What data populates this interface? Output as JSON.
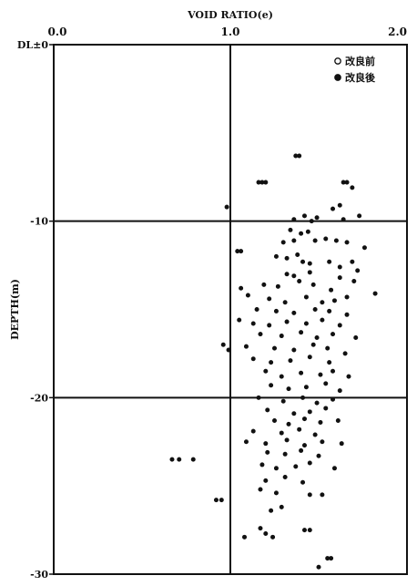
{
  "chart_data": {
    "type": "scatter",
    "title": "",
    "xlabel": "VOID RATIO(e)",
    "ylabel": "DEPTH(m)",
    "xlim": [
      0.0,
      2.0
    ],
    "ylim": [
      0,
      -30
    ],
    "x_ticks": [
      "0.0",
      "1.0",
      "2.0"
    ],
    "y_ticks": [
      "DL±0",
      "-10",
      "-20",
      "-30"
    ],
    "grid": true,
    "legend_position": "top-right",
    "legend": [
      "改良前",
      "改良後"
    ],
    "series": [
      {
        "name": "改良前",
        "marker": "open-circle",
        "points": []
      },
      {
        "name": "改良後",
        "marker": "filled-circle",
        "points": [
          [
            1.37,
            -6.3
          ],
          [
            1.39,
            -6.3
          ],
          [
            1.16,
            -7.8
          ],
          [
            1.18,
            -7.8
          ],
          [
            1.2,
            -7.8
          ],
          [
            1.64,
            -7.8
          ],
          [
            1.66,
            -7.8
          ],
          [
            1.69,
            -8.1
          ],
          [
            0.98,
            -9.2
          ],
          [
            1.62,
            -9.1
          ],
          [
            1.58,
            -9.3
          ],
          [
            1.36,
            -9.9
          ],
          [
            1.42,
            -9.7
          ],
          [
            1.46,
            -10.0
          ],
          [
            1.49,
            -9.8
          ],
          [
            1.64,
            -9.9
          ],
          [
            1.73,
            -9.7
          ],
          [
            1.34,
            -10.5
          ],
          [
            1.4,
            -10.7
          ],
          [
            1.44,
            -10.6
          ],
          [
            1.3,
            -11.2
          ],
          [
            1.36,
            -11.1
          ],
          [
            1.48,
            -11.1
          ],
          [
            1.54,
            -11.0
          ],
          [
            1.6,
            -11.1
          ],
          [
            1.66,
            -11.2
          ],
          [
            1.76,
            -11.5
          ],
          [
            1.04,
            -11.7
          ],
          [
            1.06,
            -11.7
          ],
          [
            1.26,
            -12.0
          ],
          [
            1.32,
            -12.1
          ],
          [
            1.38,
            -11.9
          ],
          [
            1.41,
            -12.3
          ],
          [
            1.45,
            -12.4
          ],
          [
            1.56,
            -12.3
          ],
          [
            1.62,
            -12.6
          ],
          [
            1.69,
            -12.3
          ],
          [
            1.72,
            -12.8
          ],
          [
            1.32,
            -13.0
          ],
          [
            1.36,
            -13.1
          ],
          [
            1.45,
            -12.9
          ],
          [
            1.62,
            -13.2
          ],
          [
            1.7,
            -13.4
          ],
          [
            1.19,
            -13.6
          ],
          [
            1.27,
            -13.7
          ],
          [
            1.39,
            -13.4
          ],
          [
            1.47,
            -13.6
          ],
          [
            1.57,
            -13.9
          ],
          [
            1.82,
            -14.1
          ],
          [
            1.06,
            -13.8
          ],
          [
            1.1,
            -14.2
          ],
          [
            1.22,
            -14.4
          ],
          [
            1.31,
            -14.6
          ],
          [
            1.43,
            -14.3
          ],
          [
            1.52,
            -14.6
          ],
          [
            1.59,
            -14.5
          ],
          [
            1.66,
            -14.3
          ],
          [
            1.15,
            -15.0
          ],
          [
            1.26,
            -15.1
          ],
          [
            1.36,
            -15.2
          ],
          [
            1.48,
            -15.0
          ],
          [
            1.56,
            -15.1
          ],
          [
            1.66,
            -15.3
          ],
          [
            1.05,
            -15.6
          ],
          [
            1.13,
            -15.8
          ],
          [
            1.22,
            -15.9
          ],
          [
            1.32,
            -15.7
          ],
          [
            1.43,
            -15.8
          ],
          [
            1.52,
            -15.6
          ],
          [
            1.62,
            -15.9
          ],
          [
            1.17,
            -16.4
          ],
          [
            1.29,
            -16.5
          ],
          [
            1.4,
            -16.3
          ],
          [
            1.49,
            -16.6
          ],
          [
            1.58,
            -16.4
          ],
          [
            1.71,
            -16.6
          ],
          [
            0.96,
            -17.0
          ],
          [
            0.99,
            -17.3
          ],
          [
            1.09,
            -17.1
          ],
          [
            1.25,
            -17.2
          ],
          [
            1.36,
            -17.3
          ],
          [
            1.47,
            -17.0
          ],
          [
            1.55,
            -17.2
          ],
          [
            1.65,
            -17.5
          ],
          [
            1.13,
            -17.8
          ],
          [
            1.23,
            -18.0
          ],
          [
            1.34,
            -17.9
          ],
          [
            1.45,
            -17.7
          ],
          [
            1.56,
            -18.0
          ],
          [
            1.2,
            -18.5
          ],
          [
            1.29,
            -18.8
          ],
          [
            1.4,
            -18.6
          ],
          [
            1.51,
            -18.7
          ],
          [
            1.58,
            -18.5
          ],
          [
            1.67,
            -18.8
          ],
          [
            1.23,
            -19.3
          ],
          [
            1.33,
            -19.5
          ],
          [
            1.43,
            -19.4
          ],
          [
            1.54,
            -19.2
          ],
          [
            1.62,
            -19.6
          ],
          [
            1.16,
            -20.0
          ],
          [
            1.3,
            -20.2
          ],
          [
            1.41,
            -20.0
          ],
          [
            1.49,
            -20.3
          ],
          [
            1.58,
            -20.1
          ],
          [
            1.21,
            -20.7
          ],
          [
            1.36,
            -20.9
          ],
          [
            1.45,
            -20.8
          ],
          [
            1.54,
            -20.6
          ],
          [
            1.25,
            -21.3
          ],
          [
            1.33,
            -21.5
          ],
          [
            1.42,
            -21.2
          ],
          [
            1.51,
            -21.4
          ],
          [
            1.61,
            -21.3
          ],
          [
            1.13,
            -21.9
          ],
          [
            1.29,
            -22.0
          ],
          [
            1.39,
            -21.8
          ],
          [
            1.48,
            -22.1
          ],
          [
            1.09,
            -22.5
          ],
          [
            1.2,
            -22.6
          ],
          [
            1.32,
            -22.4
          ],
          [
            1.42,
            -22.7
          ],
          [
            1.52,
            -22.5
          ],
          [
            1.63,
            -22.6
          ],
          [
            1.21,
            -23.1
          ],
          [
            1.31,
            -23.2
          ],
          [
            1.4,
            -23.0
          ],
          [
            1.5,
            -23.3
          ],
          [
            0.67,
            -23.5
          ],
          [
            0.71,
            -23.5
          ],
          [
            0.79,
            -23.5
          ],
          [
            1.18,
            -23.8
          ],
          [
            1.26,
            -24.0
          ],
          [
            1.37,
            -23.9
          ],
          [
            1.45,
            -23.7
          ],
          [
            1.59,
            -24.0
          ],
          [
            1.2,
            -24.7
          ],
          [
            1.31,
            -24.5
          ],
          [
            1.41,
            -24.8
          ],
          [
            1.17,
            -25.2
          ],
          [
            1.26,
            -25.4
          ],
          [
            1.45,
            -25.5
          ],
          [
            1.52,
            -25.5
          ],
          [
            0.92,
            -25.8
          ],
          [
            0.95,
            -25.8
          ],
          [
            1.23,
            -26.4
          ],
          [
            1.29,
            -26.2
          ],
          [
            1.17,
            -27.4
          ],
          [
            1.2,
            -27.7
          ],
          [
            1.24,
            -27.9
          ],
          [
            1.42,
            -27.5
          ],
          [
            1.45,
            -27.5
          ],
          [
            1.08,
            -27.9
          ],
          [
            1.55,
            -29.1
          ],
          [
            1.57,
            -29.1
          ],
          [
            1.5,
            -29.6
          ]
        ]
      }
    ]
  }
}
